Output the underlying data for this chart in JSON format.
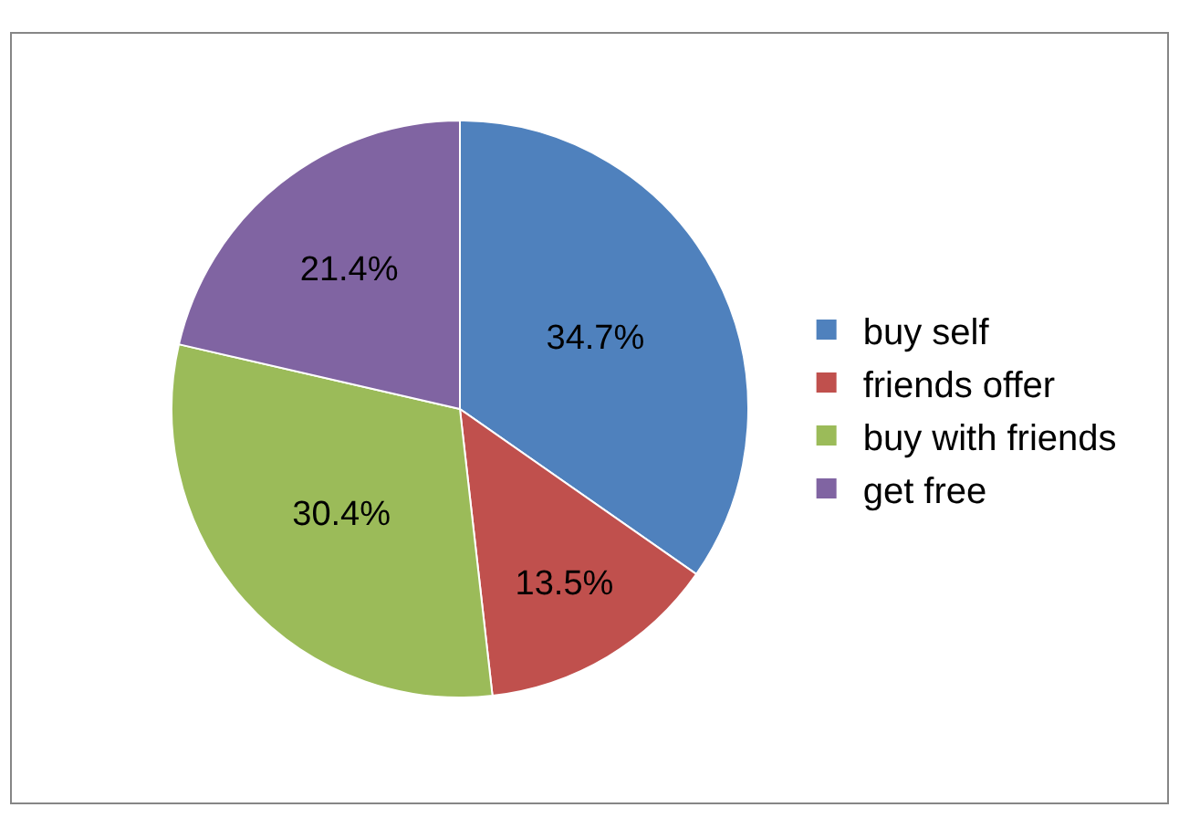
{
  "chart_data": {
    "type": "pie",
    "categories": [
      "buy self",
      "friends offer",
      "buy with friends",
      "get free"
    ],
    "values": [
      34.7,
      13.5,
      30.4,
      21.4
    ],
    "colors": [
      "#4f81bd",
      "#c0504d",
      "#9bbb59",
      "#8064a2"
    ],
    "value_labels": [
      "34.7%",
      "13.5%",
      "30.4%",
      "21.4%"
    ],
    "legend": "right"
  }
}
